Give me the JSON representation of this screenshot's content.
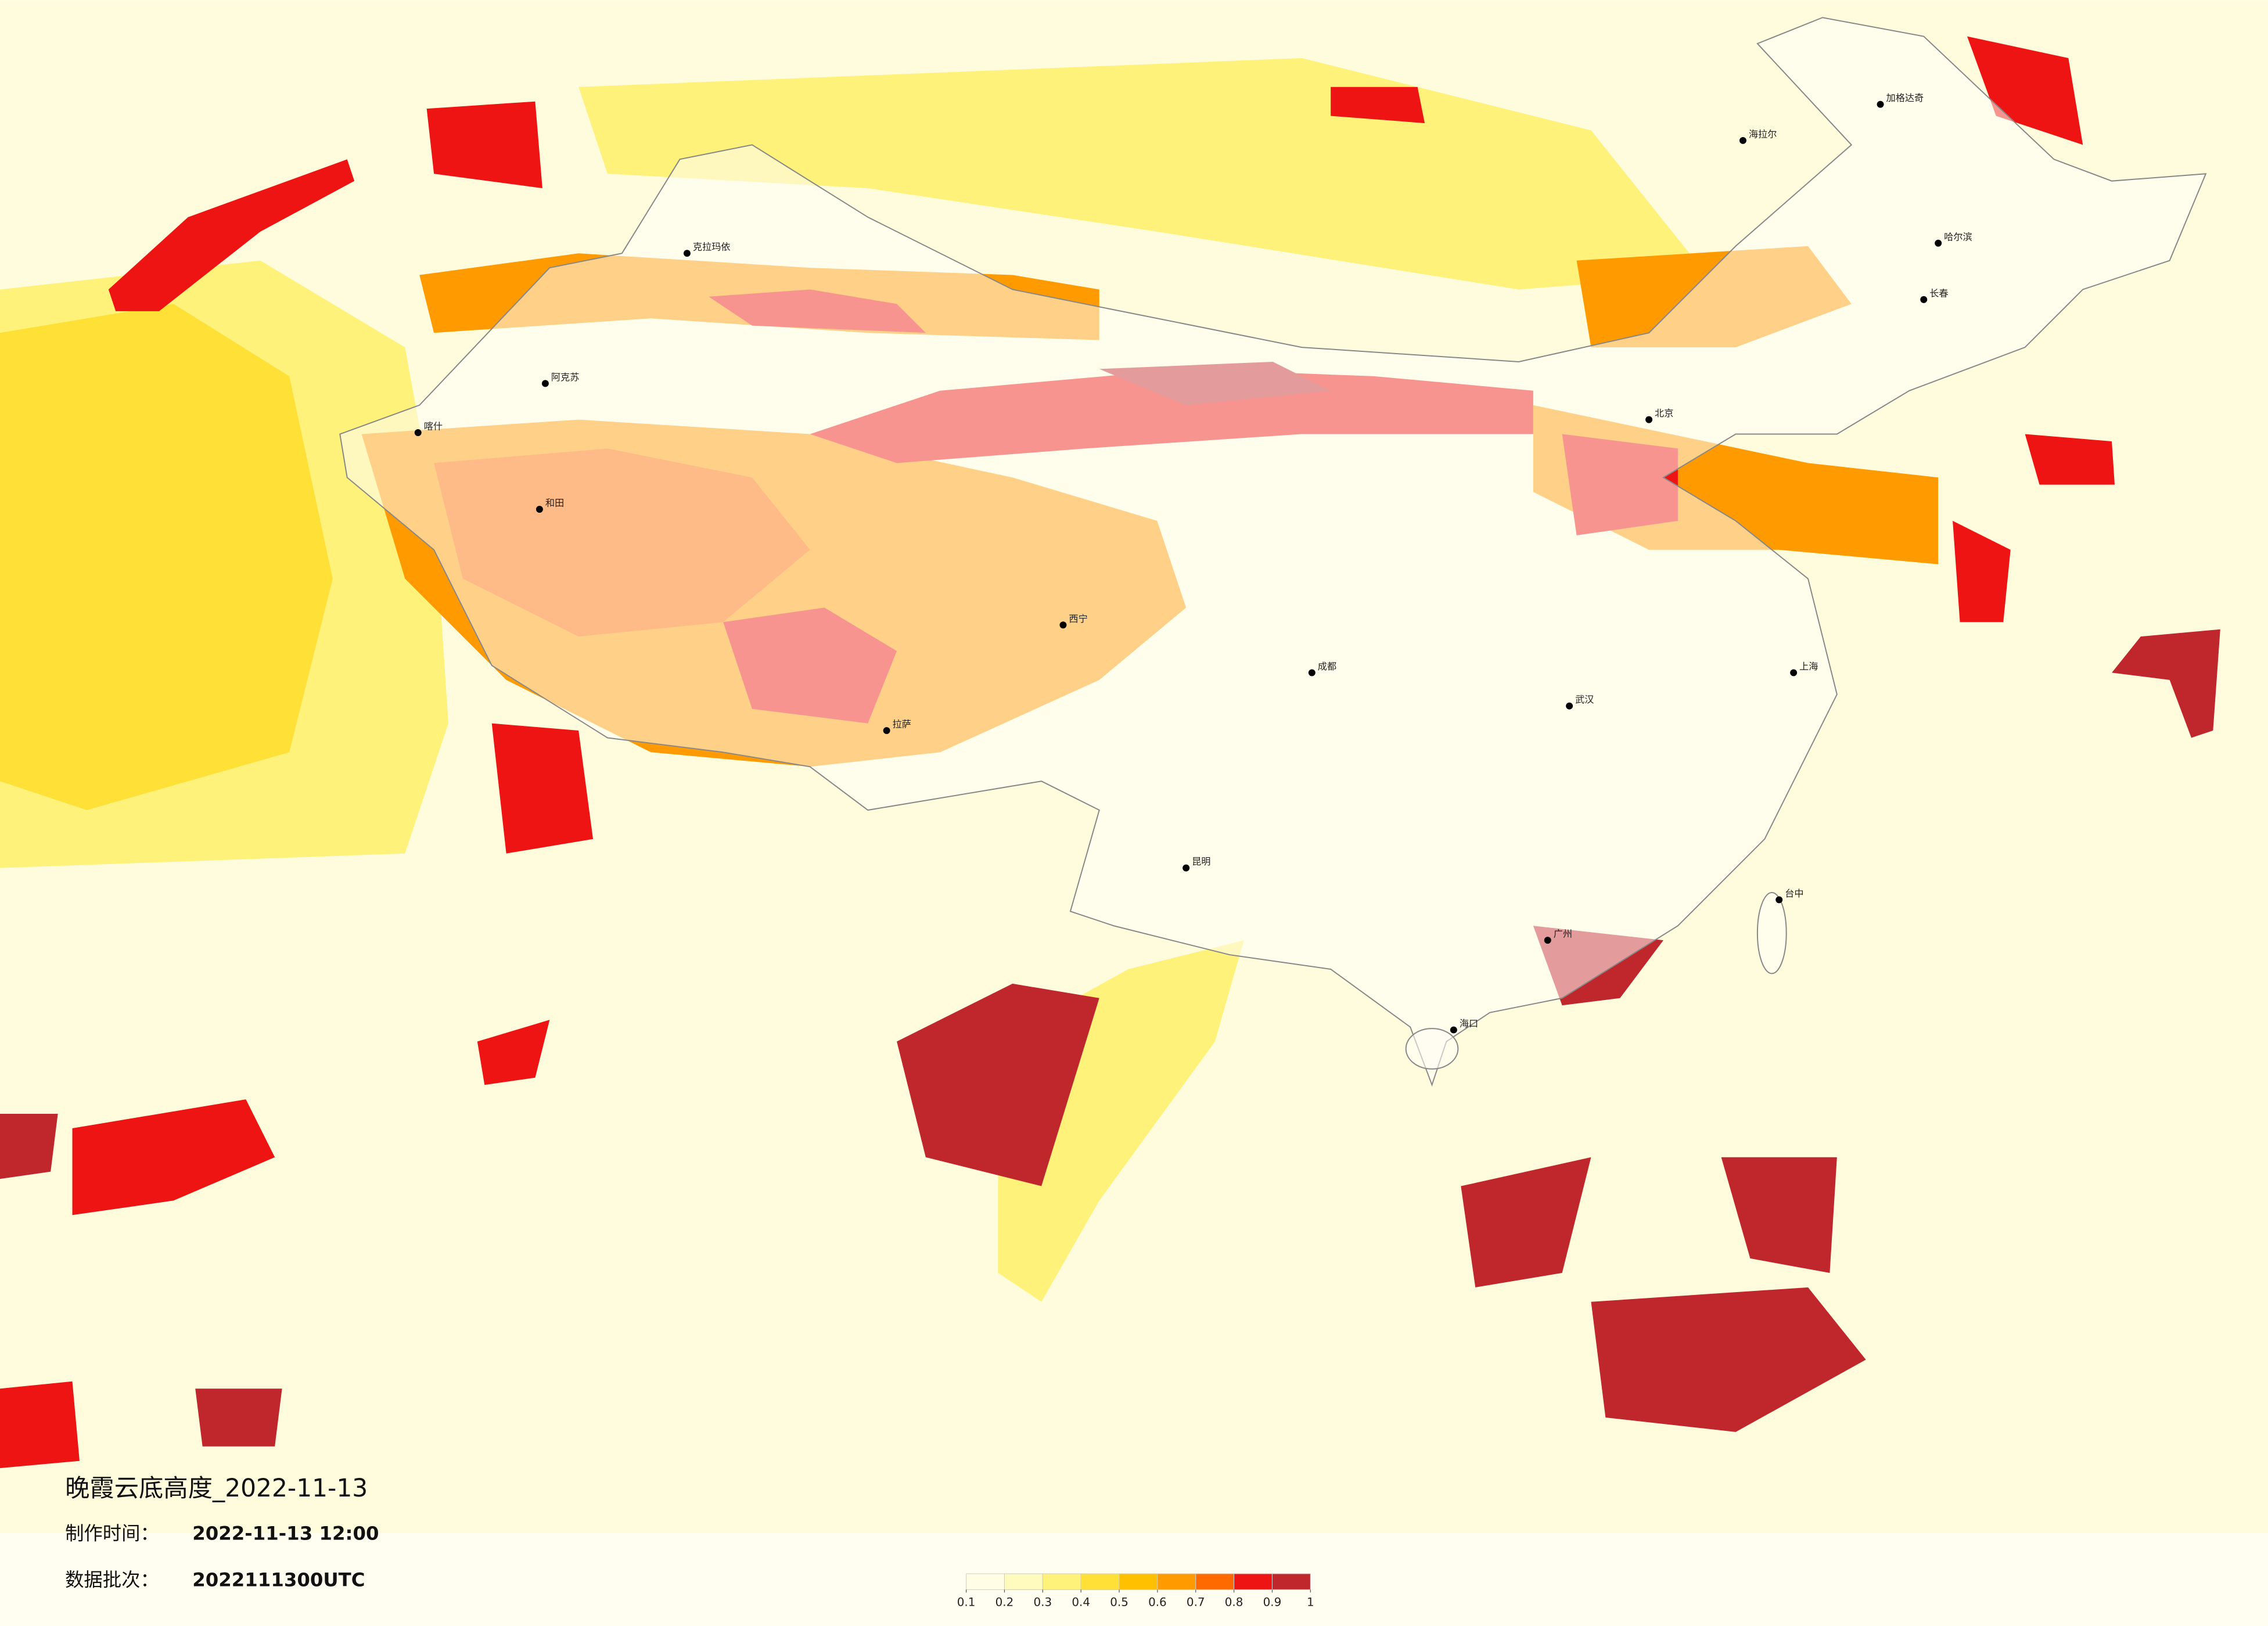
{
  "header": {
    "title": "晚霞云底高度_2022-11-13",
    "made_label": "制作时间：",
    "made_time": "2022-11-13 12:00",
    "batch_label": "数据批次：",
    "batch": "2022111300UTC"
  },
  "colorbar": {
    "ticks": [
      0.1,
      0.2,
      0.3,
      0.4,
      0.5,
      0.6,
      0.7,
      0.8,
      0.9,
      1
    ],
    "colors": [
      "#fffde6",
      "#fffabd",
      "#fff27a",
      "#ffe036",
      "#ffc000",
      "#ff9a00",
      "#ff6a00",
      "#ee1414",
      "#c0272d"
    ]
  },
  "cities": [
    "克拉玛依",
    "阿克苏",
    "喀什",
    "和田",
    "拉萨",
    "西宁",
    "加格达奇",
    "海拉尔",
    "哈尔滨",
    "长春",
    "北京",
    "上海",
    "武汉",
    "成都",
    "昆明",
    "广州",
    "海口",
    "台中"
  ]
}
